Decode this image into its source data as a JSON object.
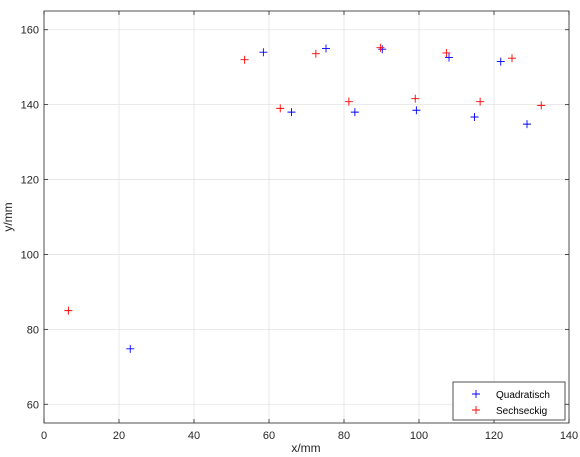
{
  "chart_data": {
    "type": "scatter",
    "title": "",
    "xlabel": "x/mm",
    "ylabel": "y/mm",
    "xlim": [
      0,
      140
    ],
    "ylim": [
      55,
      165
    ],
    "xticks": [
      0,
      20,
      40,
      60,
      80,
      100,
      120,
      140
    ],
    "yticks": [
      60,
      80,
      100,
      120,
      140,
      160
    ],
    "grid": true,
    "legend_position": "bottom-right",
    "marker": "+",
    "series": [
      {
        "name": "Quadratisch",
        "color": "#0000ff",
        "points": [
          [
            23.0,
            74.8
          ],
          [
            58.5,
            154.0
          ],
          [
            66.0,
            138.0
          ],
          [
            75.2,
            155.0
          ],
          [
            82.9,
            138.0
          ],
          [
            90.2,
            154.8
          ],
          [
            99.3,
            138.5
          ],
          [
            108.0,
            152.6
          ],
          [
            114.8,
            136.7
          ],
          [
            121.8,
            151.5
          ],
          [
            128.8,
            134.8
          ]
        ]
      },
      {
        "name": "Sechseckig",
        "color": "#ff0000",
        "points": [
          [
            6.5,
            85.0
          ],
          [
            53.5,
            152.0
          ],
          [
            63.0,
            139.0
          ],
          [
            72.5,
            153.6
          ],
          [
            81.3,
            140.8
          ],
          [
            89.7,
            155.2
          ],
          [
            99.0,
            141.6
          ],
          [
            107.3,
            153.8
          ],
          [
            116.3,
            140.8
          ],
          [
            124.8,
            152.4
          ],
          [
            132.6,
            139.8
          ]
        ]
      }
    ]
  }
}
